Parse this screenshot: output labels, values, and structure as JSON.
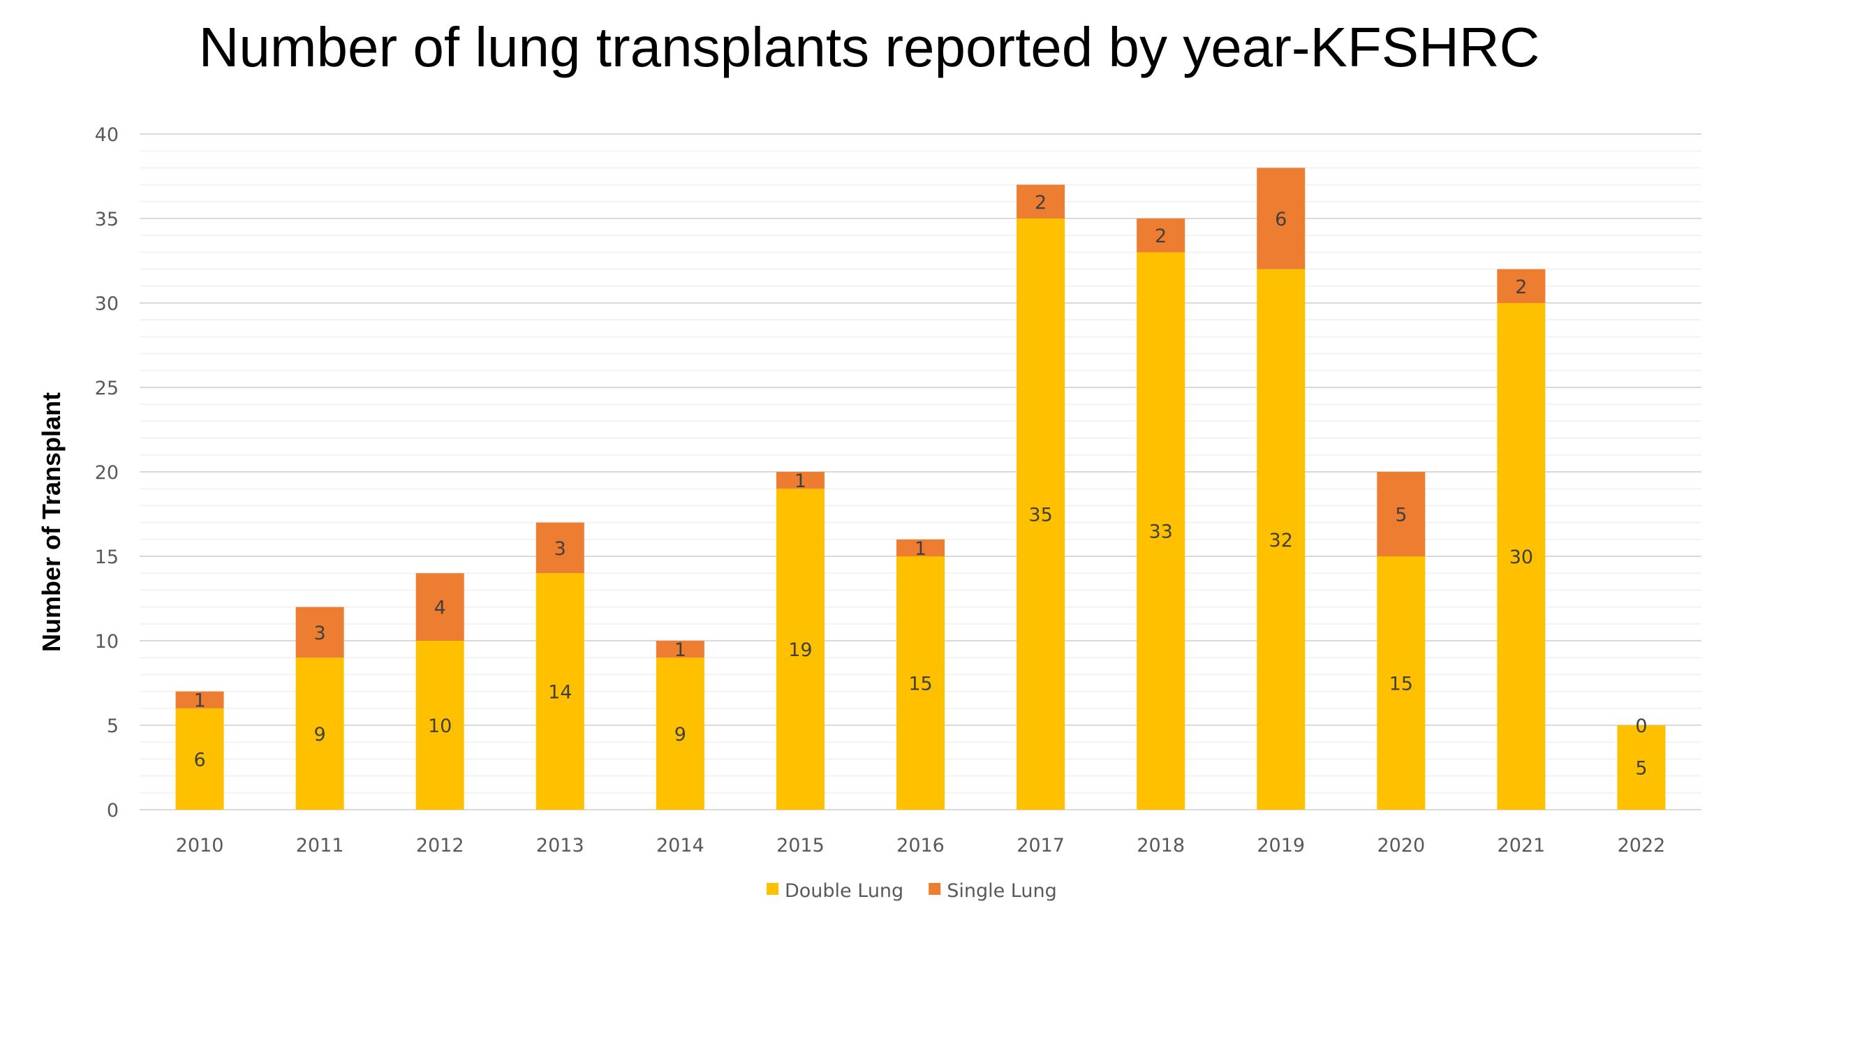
{
  "chart_data": {
    "type": "bar",
    "stacked": true,
    "title": "Number of lung transplants reported by year-KFSHRC",
    "xlabel": "",
    "ylabel": "Number of Transplant",
    "ylim": [
      0,
      40
    ],
    "yticks": [
      0,
      5,
      10,
      15,
      20,
      25,
      30,
      35,
      40
    ],
    "grid": "horizontal major every 5, minor every 1",
    "legend_position": "bottom",
    "categories": [
      "2010",
      "2011",
      "2012",
      "2013",
      "2014",
      "2015",
      "2016",
      "2017",
      "2018",
      "2019",
      "2020",
      "2021",
      "2022"
    ],
    "series": [
      {
        "name": "Double Lung",
        "color": "#FFC000",
        "values": [
          6,
          9,
          10,
          14,
          9,
          19,
          15,
          35,
          33,
          32,
          15,
          30,
          5
        ]
      },
      {
        "name": "Single Lung",
        "color": "#ED7D31",
        "values": [
          1,
          3,
          4,
          3,
          1,
          1,
          1,
          2,
          2,
          6,
          5,
          2,
          0
        ]
      }
    ]
  }
}
